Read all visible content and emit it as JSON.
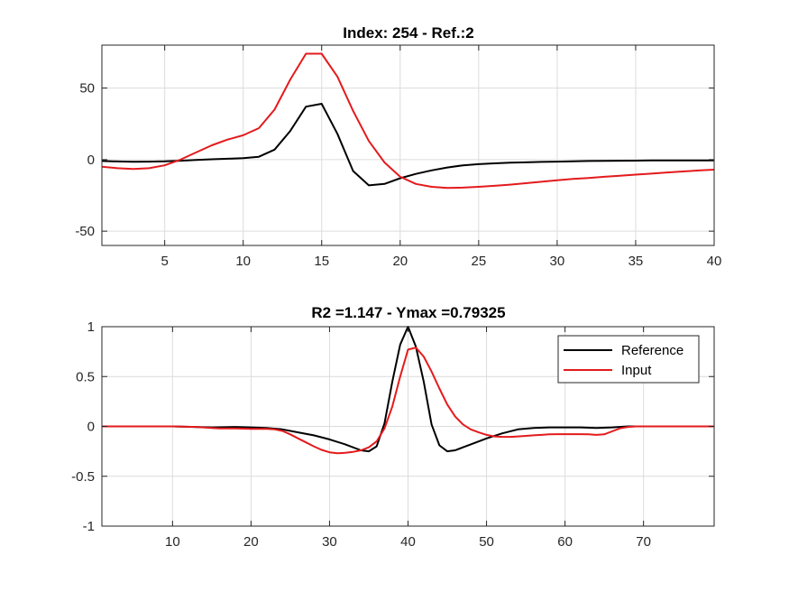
{
  "chart_data": [
    {
      "type": "line",
      "title": "Index: 254 - Ref.:2",
      "xlim": [
        1,
        40
      ],
      "ylim": [
        -60,
        80
      ],
      "xticks": [
        5,
        10,
        15,
        20,
        25,
        30,
        35,
        40
      ],
      "xtick_labels": [
        "5",
        "10",
        "15",
        "20",
        "25",
        "30",
        "35",
        "40"
      ],
      "yticks": [
        -50,
        0,
        50
      ],
      "ytick_labels": [
        "-50",
        "0",
        "50"
      ],
      "grid": true,
      "series": [
        {
          "color": "#000000",
          "x": [
            1,
            2,
            3,
            4,
            5,
            6,
            7,
            8,
            9,
            10,
            11,
            12,
            13,
            14,
            15,
            16,
            17,
            18,
            19,
            20,
            21,
            22,
            23,
            24,
            25,
            26,
            27,
            28,
            29,
            30,
            31,
            32,
            33,
            34,
            35,
            36,
            37,
            38,
            39,
            40
          ],
          "y": [
            -1,
            -1.3,
            -1.5,
            -1.4,
            -1.2,
            -0.8,
            -0.3,
            0.2,
            0.6,
            1,
            2,
            7,
            20,
            37,
            39,
            18,
            -8,
            -18,
            -17,
            -13,
            -10,
            -7.5,
            -5.5,
            -4,
            -3.2,
            -2.6,
            -2.2,
            -1.9,
            -1.6,
            -1.4,
            -1.2,
            -1,
            -0.9,
            -0.8,
            -0.7,
            -0.6,
            -0.6,
            -0.6,
            -0.6,
            -0.6
          ]
        },
        {
          "color": "#e41a1c",
          "x": [
            1,
            2,
            3,
            4,
            5,
            6,
            7,
            8,
            9,
            10,
            11,
            12,
            13,
            14,
            15,
            16,
            17,
            18,
            19,
            20,
            21,
            22,
            23,
            24,
            25,
            26,
            27,
            28,
            29,
            30,
            31,
            32,
            33,
            34,
            35,
            36,
            37,
            38,
            39,
            40
          ],
          "y": [
            -5,
            -6,
            -6.5,
            -6,
            -4,
            0,
            5,
            10,
            14,
            17,
            22,
            35,
            56,
            74,
            74,
            58,
            34,
            13,
            -2,
            -12,
            -17,
            -19,
            -19.8,
            -19.6,
            -19,
            -18.3,
            -17.5,
            -16.5,
            -15.5,
            -14.5,
            -13.5,
            -12.8,
            -12,
            -11.3,
            -10.5,
            -9.8,
            -9,
            -8.3,
            -7.6,
            -7
          ]
        }
      ]
    },
    {
      "type": "line",
      "title": "R2 =1.147 - Ymax =0.79325",
      "xlim": [
        1,
        79
      ],
      "ylim": [
        -1,
        1
      ],
      "xticks": [
        10,
        20,
        30,
        40,
        50,
        60,
        70
      ],
      "xtick_labels": [
        "10",
        "20",
        "30",
        "40",
        "50",
        "60",
        "70"
      ],
      "yticks": [
        -1,
        -0.5,
        0,
        0.5,
        1
      ],
      "ytick_labels": [
        "-1",
        "-0.5",
        "0",
        "0.5",
        "1"
      ],
      "grid": true,
      "legend_position": "top-right",
      "series": [
        {
          "name": "Reference",
          "color": "#000000",
          "x": [
            1,
            5,
            10,
            15,
            18,
            20,
            22,
            24,
            26,
            28,
            30,
            32,
            34,
            35,
            36,
            37,
            38,
            39,
            40,
            41,
            42,
            43,
            44,
            45,
            46,
            47,
            48,
            50,
            52,
            54,
            56,
            58,
            60,
            62,
            64,
            66,
            68,
            70,
            75,
            79
          ],
          "y": [
            0,
            0,
            0,
            -0.01,
            -0.005,
            -0.01,
            -0.015,
            -0.03,
            -0.06,
            -0.09,
            -0.13,
            -0.18,
            -0.24,
            -0.25,
            -0.2,
            0.03,
            0.45,
            0.82,
            1,
            0.8,
            0.45,
            0.02,
            -0.19,
            -0.25,
            -0.24,
            -0.21,
            -0.18,
            -0.12,
            -0.07,
            -0.03,
            -0.015,
            -0.01,
            -0.01,
            -0.01,
            -0.015,
            -0.01,
            0,
            0,
            0,
            0
          ]
        },
        {
          "name": "Input",
          "color": "#e41a1c",
          "x": [
            1,
            5,
            10,
            13,
            15,
            16,
            18,
            20,
            22,
            23,
            24,
            25,
            26,
            27,
            28,
            29,
            30,
            31,
            32,
            33,
            34,
            35,
            36,
            37,
            38,
            39,
            40,
            41,
            42,
            43,
            44,
            45,
            46,
            47,
            48,
            49,
            50,
            51,
            52,
            53,
            54,
            55,
            56,
            57,
            58,
            59,
            60,
            61,
            62,
            63,
            64,
            65,
            66,
            67,
            68,
            69,
            70,
            75,
            79
          ],
          "y": [
            0,
            0,
            0,
            -0.005,
            -0.015,
            -0.02,
            -0.02,
            -0.025,
            -0.025,
            -0.03,
            -0.045,
            -0.08,
            -0.12,
            -0.16,
            -0.2,
            -0.235,
            -0.26,
            -0.27,
            -0.265,
            -0.255,
            -0.24,
            -0.21,
            -0.15,
            -0.02,
            0.2,
            0.5,
            0.77,
            0.79,
            0.7,
            0.55,
            0.38,
            0.22,
            0.1,
            0.02,
            -0.03,
            -0.06,
            -0.085,
            -0.1,
            -0.105,
            -0.105,
            -0.1,
            -0.095,
            -0.09,
            -0.085,
            -0.08,
            -0.078,
            -0.078,
            -0.078,
            -0.078,
            -0.08,
            -0.085,
            -0.08,
            -0.05,
            -0.02,
            -0.005,
            0,
            0,
            0,
            0
          ]
        }
      ]
    }
  ]
}
